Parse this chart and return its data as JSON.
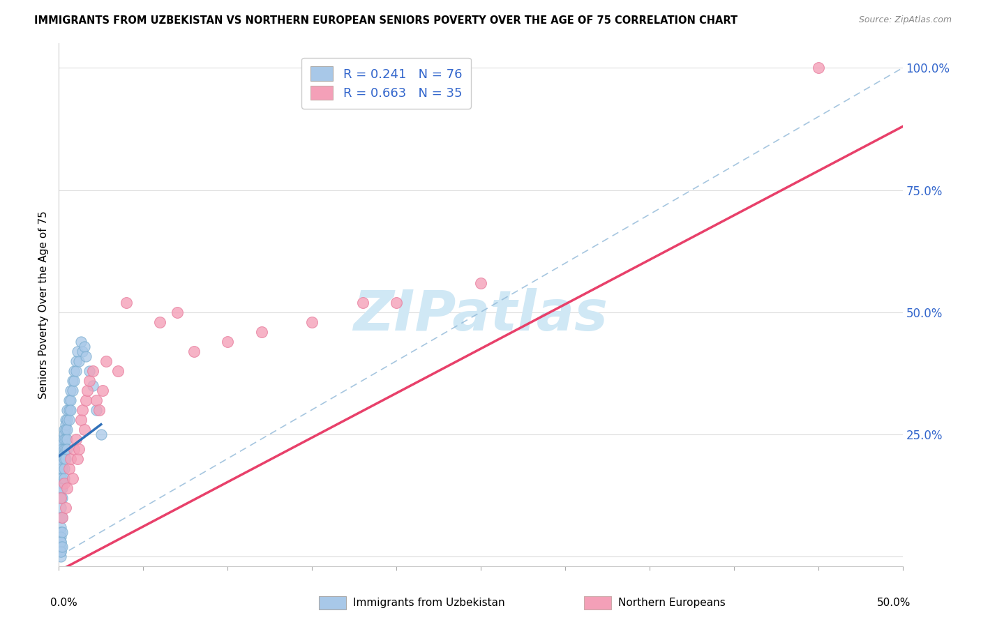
{
  "title": "IMMIGRANTS FROM UZBEKISTAN VS NORTHERN EUROPEAN SENIORS POVERTY OVER THE AGE OF 75 CORRELATION CHART",
  "source": "Source: ZipAtlas.com",
  "ylabel": "Seniors Poverty Over the Age of 75",
  "xlim": [
    0.0,
    0.5
  ],
  "ylim": [
    -0.02,
    1.05
  ],
  "yticks": [
    0.0,
    0.25,
    0.5,
    0.75,
    1.0
  ],
  "ytick_labels": [
    "",
    "25.0%",
    "50.0%",
    "75.0%",
    "100.0%"
  ],
  "xticks": [
    0.0,
    0.05,
    0.1,
    0.15,
    0.2,
    0.25,
    0.3,
    0.35,
    0.4,
    0.45,
    0.5
  ],
  "blue_color": "#a8c8e8",
  "pink_color": "#f4a0b8",
  "blue_line_color": "#3070b8",
  "pink_line_color": "#e8406a",
  "dash_line_color": "#90b8d8",
  "watermark": "ZIPatlas",
  "watermark_color": "#d0e8f5",
  "blue_scatter_x": [
    0.001,
    0.001,
    0.001,
    0.001,
    0.001,
    0.001,
    0.001,
    0.001,
    0.001,
    0.001,
    0.002,
    0.002,
    0.002,
    0.002,
    0.002,
    0.002,
    0.002,
    0.002,
    0.002,
    0.002,
    0.003,
    0.003,
    0.003,
    0.003,
    0.003,
    0.003,
    0.003,
    0.003,
    0.004,
    0.004,
    0.004,
    0.004,
    0.004,
    0.004,
    0.005,
    0.005,
    0.005,
    0.005,
    0.005,
    0.006,
    0.006,
    0.006,
    0.007,
    0.007,
    0.007,
    0.008,
    0.008,
    0.009,
    0.009,
    0.01,
    0.01,
    0.011,
    0.012,
    0.013,
    0.014,
    0.015,
    0.016,
    0.018,
    0.02,
    0.022,
    0.025,
    0.001,
    0.001,
    0.001,
    0.001,
    0.001,
    0.001,
    0.001,
    0.001,
    0.001,
    0.001,
    0.002,
    0.002,
    0.002
  ],
  "blue_scatter_y": [
    0.22,
    0.2,
    0.19,
    0.18,
    0.16,
    0.15,
    0.14,
    0.12,
    0.1,
    0.08,
    0.24,
    0.23,
    0.22,
    0.2,
    0.19,
    0.18,
    0.16,
    0.15,
    0.14,
    0.12,
    0.26,
    0.25,
    0.24,
    0.22,
    0.21,
    0.2,
    0.18,
    0.16,
    0.28,
    0.27,
    0.26,
    0.24,
    0.22,
    0.2,
    0.3,
    0.28,
    0.26,
    0.24,
    0.22,
    0.32,
    0.3,
    0.28,
    0.34,
    0.32,
    0.3,
    0.36,
    0.34,
    0.38,
    0.36,
    0.4,
    0.38,
    0.42,
    0.4,
    0.44,
    0.42,
    0.43,
    0.41,
    0.38,
    0.35,
    0.3,
    0.25,
    0.06,
    0.05,
    0.04,
    0.03,
    0.02,
    0.01,
    0.0,
    0.02,
    0.03,
    0.01,
    0.08,
    0.05,
    0.02
  ],
  "pink_scatter_x": [
    0.001,
    0.002,
    0.003,
    0.004,
    0.005,
    0.006,
    0.007,
    0.008,
    0.009,
    0.01,
    0.011,
    0.012,
    0.013,
    0.014,
    0.015,
    0.016,
    0.017,
    0.018,
    0.02,
    0.022,
    0.024,
    0.026,
    0.028,
    0.035,
    0.04,
    0.06,
    0.07,
    0.08,
    0.1,
    0.12,
    0.15,
    0.18,
    0.2,
    0.25,
    0.45
  ],
  "pink_scatter_y": [
    0.12,
    0.08,
    0.15,
    0.1,
    0.14,
    0.18,
    0.2,
    0.16,
    0.22,
    0.24,
    0.2,
    0.22,
    0.28,
    0.3,
    0.26,
    0.32,
    0.34,
    0.36,
    0.38,
    0.32,
    0.3,
    0.34,
    0.4,
    0.38,
    0.52,
    0.48,
    0.5,
    0.42,
    0.44,
    0.46,
    0.48,
    0.52,
    0.52,
    0.56,
    1.0
  ],
  "blue_line_x0": 0.0,
  "blue_line_x1": 0.025,
  "blue_line_y0": 0.205,
  "blue_line_y1": 0.27,
  "pink_line_x0": 0.0,
  "pink_line_x1": 0.5,
  "pink_line_y0": -0.03,
  "pink_line_y1": 0.88,
  "dash_line_x0": 0.0,
  "dash_line_x1": 0.5,
  "dash_line_y0": 0.0,
  "dash_line_y1": 1.0
}
